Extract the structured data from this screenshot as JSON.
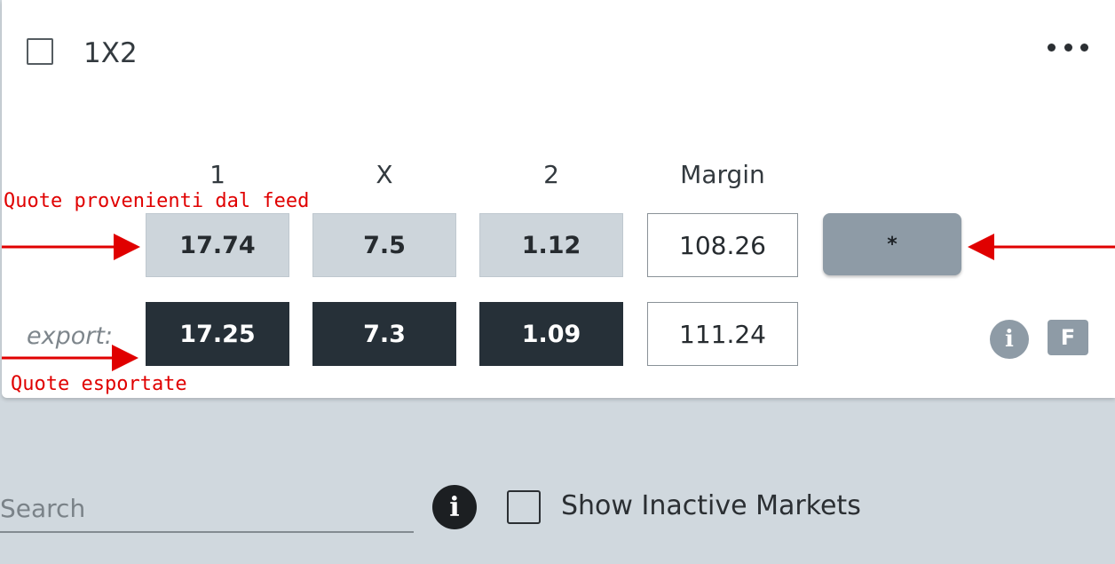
{
  "market": {
    "title": "1X2",
    "menu_icon": "more-horizontal-icon"
  },
  "columns": {
    "home": "1",
    "draw": "X",
    "away": "2",
    "margin": "Margin"
  },
  "feed_row": {
    "home": "17.74",
    "draw": "7.5",
    "away": "1.12",
    "margin": "108.26",
    "action_label": "*"
  },
  "export_row": {
    "label": "export:",
    "home": "17.25",
    "draw": "7.3",
    "away": "1.09",
    "margin": "111.24",
    "info_icon_label": "i",
    "badge_label": "F"
  },
  "annotations": {
    "feed": "Quote provenienti dal feed",
    "export": "Quote esportate",
    "color": "#e00000"
  },
  "footer": {
    "search_placeholder": "Search",
    "info_icon_label": "i",
    "show_inactive_label": "Show Inactive Markets"
  }
}
